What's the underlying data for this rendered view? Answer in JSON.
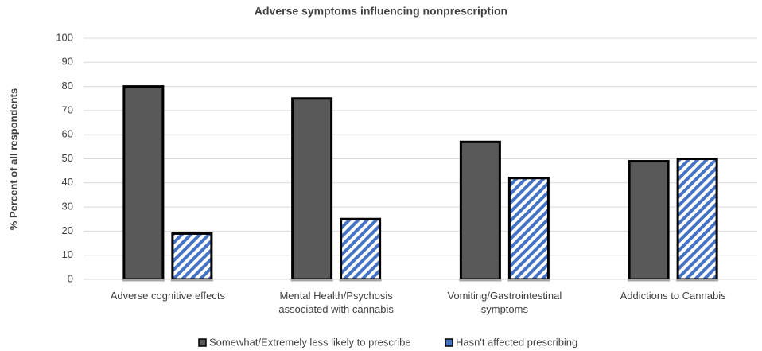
{
  "chart_data": {
    "type": "bar",
    "title": "Adverse symptoms influencing nonprescription",
    "y_label": "% Percent  of all respondents",
    "categories": [
      "Adverse cognitive effects",
      "Mental Health/Psychosis associated with cannabis",
      "Vomiting/Gastrointestinal symptoms",
      "Addictions to Cannabis"
    ],
    "series": [
      {
        "name": "Somewhat/Extremely less likely to prescribe",
        "color": "#595959",
        "values": [
          80,
          75,
          57,
          49
        ]
      },
      {
        "name": "Hasn't affected prescribing",
        "color": "#4472c4",
        "values": [
          19,
          25,
          42,
          50
        ]
      }
    ],
    "ylim": [
      0,
      100
    ],
    "yticks": [
      0,
      10,
      20,
      30,
      40,
      50,
      60,
      70,
      80,
      90,
      100
    ],
    "grid": true,
    "legend": "bottom"
  }
}
